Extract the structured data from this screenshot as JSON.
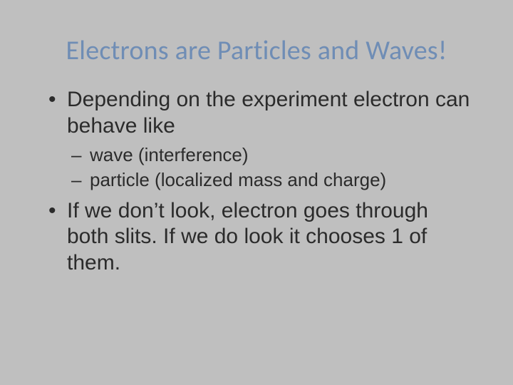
{
  "slide": {
    "background_color": "#bfbfbf",
    "title": {
      "text": "Electrons are Particles and Waves!",
      "color": "#6f8db5",
      "fontsize": 38,
      "font_weight": 300,
      "font_family": "Segoe UI Light"
    },
    "body_text_color": "#2b2b2b",
    "body_font_family": "Arial",
    "bullets": [
      {
        "text": "Depending on the experiment electron can behave like",
        "fontsize": 30,
        "sub": [
          {
            "text": "wave (interference)",
            "fontsize": 26
          },
          {
            "text": "particle (localized mass and charge)",
            "fontsize": 26
          }
        ]
      },
      {
        "text": "If we don’t look, electron goes through both slits. If we do look it chooses 1 of them.",
        "fontsize": 30,
        "sub": []
      }
    ]
  }
}
